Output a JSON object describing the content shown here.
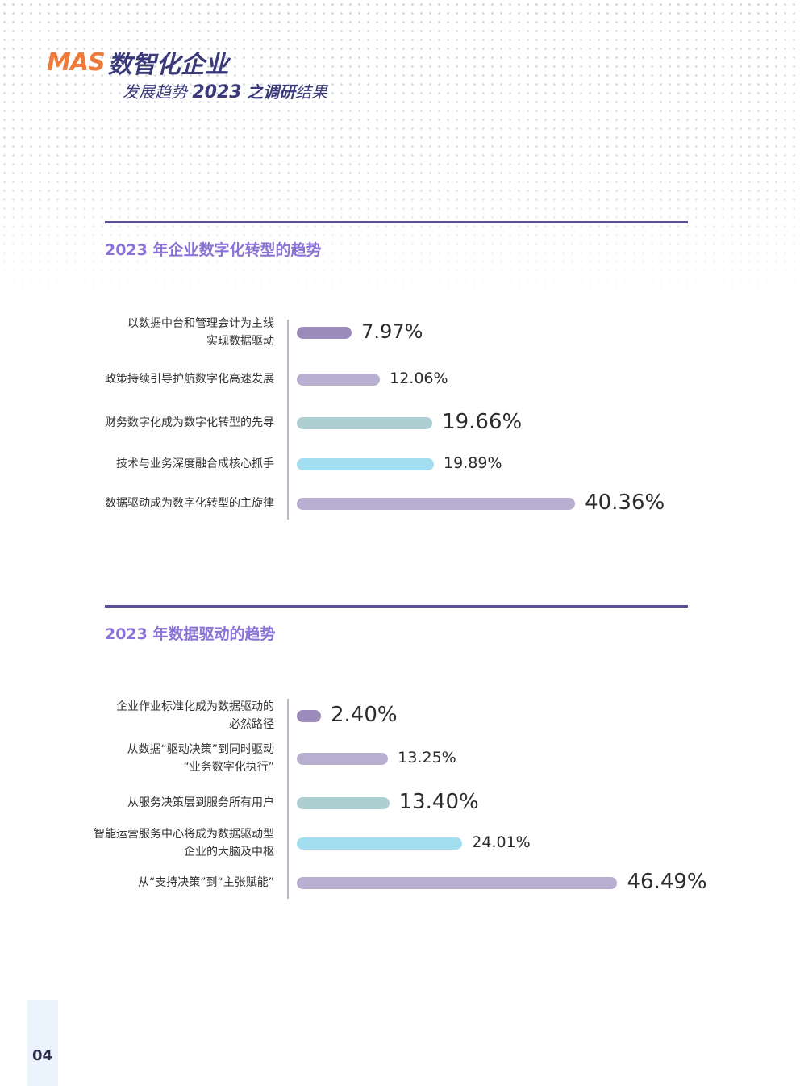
{
  "logo": {
    "mas": "MAS",
    "main": "数智化企业",
    "sub_pre": "发展趋势",
    "sub_year": "2023",
    "sub_mid": "之调研",
    "sub_post": "结果"
  },
  "colors": {
    "accent_line": "#5c4f96",
    "title": "#8a72d6",
    "purple": "#9b8bbb",
    "lavender": "#b8aed0",
    "teal": "#aecfd2",
    "sky": "#a2ddf0"
  },
  "page_number": "04",
  "chart_data": [
    {
      "type": "bar",
      "orientation": "horizontal",
      "title": "2023 年企业数字化转型的趋势",
      "categories": [
        "以数据中台和管理会计为主线实现数据驱动",
        "政策持续引导护航数字化高速发展",
        "财务数字化成为数字化转型的先导",
        "技术与业务深度融合成核心抓手",
        "数据驱动成为数字化转型的主旋律"
      ],
      "label_lines": [
        [
          "以数据中台和管理会计为主线",
          "实现数据驱动"
        ],
        [
          "政策持续引导护航数字化高速发展"
        ],
        [
          "财务数字化成为数字化转型的先导"
        ],
        [
          "技术与业务深度融合成核心抓手"
        ],
        [
          "数据驱动成为数字化转型的主旋律"
        ]
      ],
      "values": [
        7.97,
        12.06,
        19.66,
        19.89,
        40.36
      ],
      "value_labels": [
        "7.97%",
        "12.06%",
        "19.66%",
        "19.89%",
        "40.36%"
      ],
      "colors": [
        "#9b8bbb",
        "#b8aed0",
        "#aecfd2",
        "#a2ddf0",
        "#b8aed0"
      ],
      "xlim": [
        0,
        50
      ],
      "grid": false
    },
    {
      "type": "bar",
      "orientation": "horizontal",
      "title": "2023 年数据驱动的趋势",
      "categories": [
        "企业作业标准化成为数据驱动的必然路径",
        "从数据“驱动决策”到同时驱动“业务数字化执行”",
        "从服务决策层到服务所有用户",
        "智能运营服务中心将成为数据驱动型企业的大脑及中枢",
        "从“支持决策”到“主张赋能”"
      ],
      "label_lines": [
        [
          "企业作业标准化成为数据驱动的",
          "必然路径"
        ],
        [
          "从数据“驱动决策”到同时驱动",
          "“业务数字化执行”"
        ],
        [
          "从服务决策层到服务所有用户"
        ],
        [
          "智能运营服务中心将成为数据驱动型",
          "企业的大脑及中枢"
        ],
        [
          "从“支持决策”到“主张赋能”"
        ]
      ],
      "values": [
        2.4,
        13.25,
        13.4,
        24.01,
        46.49
      ],
      "value_labels": [
        "2.40%",
        "13.25%",
        "13.40%",
        "24.01%",
        "46.49%"
      ],
      "colors": [
        "#9b8bbb",
        "#b8aed0",
        "#aecfd2",
        "#a2ddf0",
        "#b8aed0"
      ],
      "xlim": [
        0,
        50
      ],
      "grid": false
    }
  ]
}
